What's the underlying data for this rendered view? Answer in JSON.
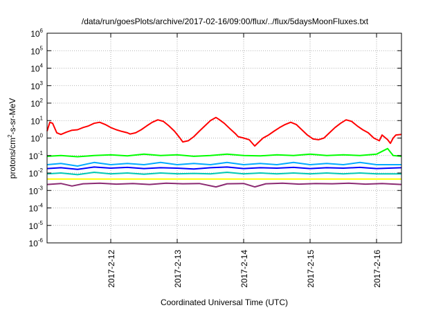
{
  "chart_data": {
    "type": "line",
    "title": "/data/run/goesPlots/archive/2017-02-16/09:00/flux/../flux/5daysMoonFluxes.txt",
    "xlabel": "Coordinated Universal Time (UTC)",
    "ylabel": "protons/cm2-s-sr-MeV",
    "ylabel_parts": {
      "pre": "protons/cm",
      "sup": "2",
      "post": "-s-sr-MeV"
    },
    "y_scale": "log",
    "ylim": [
      1e-06,
      1000000.0
    ],
    "xlim": [
      "2017-02-11 01:00",
      "2017-02-16 09:00"
    ],
    "grid": true,
    "x_ticks": [
      {
        "date": "2017-02-12 00:00",
        "label": "2017-2-12"
      },
      {
        "date": "2017-02-13 00:00",
        "label": "2017-2-13"
      },
      {
        "date": "2017-02-14 00:00",
        "label": "2017-2-14"
      },
      {
        "date": "2017-02-15 00:00",
        "label": "2017-2-15"
      },
      {
        "date": "2017-02-16 00:00",
        "label": "2017-2-16"
      }
    ],
    "y_ticks": [
      {
        "value": 1e-06,
        "base": "10",
        "exp": "-6"
      },
      {
        "value": 1e-05,
        "base": "10",
        "exp": "-5"
      },
      {
        "value": 0.0001,
        "base": "10",
        "exp": "-4"
      },
      {
        "value": 0.001,
        "base": "10",
        "exp": "-3"
      },
      {
        "value": 0.01,
        "base": "10",
        "exp": "-2"
      },
      {
        "value": 0.1,
        "base": "10",
        "exp": "-1"
      },
      {
        "value": 1,
        "base": "10",
        "exp": "0"
      },
      {
        "value": 10,
        "base": "10",
        "exp": "1"
      },
      {
        "value": 100,
        "base": "10",
        "exp": "2"
      },
      {
        "value": 1000,
        "base": "10",
        "exp": "3"
      },
      {
        "value": 10000,
        "base": "10",
        "exp": "4"
      },
      {
        "value": 100000,
        "base": "10",
        "exp": "5"
      },
      {
        "value": 1000000,
        "base": "10",
        "exp": "6"
      }
    ],
    "series": [
      {
        "color": "#ff0000",
        "points": [
          [
            "2017-02-11 01:00",
            2.5
          ],
          [
            "2017-02-11 02:00",
            8.0
          ],
          [
            "2017-02-11 03:00",
            7.0
          ],
          [
            "2017-02-11 04:30",
            2.0
          ],
          [
            "2017-02-11 06:00",
            1.6
          ],
          [
            "2017-02-11 08:00",
            2.2
          ],
          [
            "2017-02-11 10:00",
            2.8
          ],
          [
            "2017-02-11 12:00",
            3.0
          ],
          [
            "2017-02-11 14:00",
            4.0
          ],
          [
            "2017-02-11 16:00",
            5.0
          ],
          [
            "2017-02-11 18:00",
            7.0
          ],
          [
            "2017-02-11 20:00",
            8.0
          ],
          [
            "2017-02-11 22:00",
            6.0
          ],
          [
            "2017-02-12 00:00",
            4.0
          ],
          [
            "2017-02-12 02:00",
            3.0
          ],
          [
            "2017-02-12 04:00",
            2.4
          ],
          [
            "2017-02-12 06:00",
            2.0
          ],
          [
            "2017-02-12 07:00",
            1.7
          ],
          [
            "2017-02-12 09:00",
            2.0
          ],
          [
            "2017-02-12 11:00",
            3.0
          ],
          [
            "2017-02-12 13:00",
            5.0
          ],
          [
            "2017-02-12 15:00",
            8.0
          ],
          [
            "2017-02-12 17:00",
            11.0
          ],
          [
            "2017-02-12 19:00",
            9.0
          ],
          [
            "2017-02-12 21:00",
            5.0
          ],
          [
            "2017-02-12 23:00",
            2.5
          ],
          [
            "2017-02-13 01:00",
            1.0
          ],
          [
            "2017-02-13 02:00",
            0.6
          ],
          [
            "2017-02-13 04:00",
            0.7
          ],
          [
            "2017-02-13 06:00",
            1.2
          ],
          [
            "2017-02-13 08:00",
            2.5
          ],
          [
            "2017-02-13 10:00",
            5.0
          ],
          [
            "2017-02-13 12:00",
            10.0
          ],
          [
            "2017-02-13 14:00",
            15.0
          ],
          [
            "2017-02-13 15:00",
            12.0
          ],
          [
            "2017-02-13 17:00",
            7.0
          ],
          [
            "2017-02-13 19:00",
            3.5
          ],
          [
            "2017-02-13 21:00",
            1.8
          ],
          [
            "2017-02-13 22:00",
            1.2
          ],
          [
            "2017-02-14 00:00",
            1.0
          ],
          [
            "2017-02-14 02:00",
            0.8
          ],
          [
            "2017-02-14 04:00",
            0.35
          ],
          [
            "2017-02-14 05:00",
            0.5
          ],
          [
            "2017-02-14 07:00",
            1.0
          ],
          [
            "2017-02-14 09:00",
            1.5
          ],
          [
            "2017-02-14 11:00",
            2.5
          ],
          [
            "2017-02-14 13:00",
            4.0
          ],
          [
            "2017-02-14 15:00",
            6.0
          ],
          [
            "2017-02-14 17:00",
            8.0
          ],
          [
            "2017-02-14 19:00",
            6.0
          ],
          [
            "2017-02-14 21:00",
            3.0
          ],
          [
            "2017-02-14 23:00",
            1.5
          ],
          [
            "2017-02-15 01:00",
            0.9
          ],
          [
            "2017-02-15 03:00",
            0.8
          ],
          [
            "2017-02-15 05:00",
            1.0
          ],
          [
            "2017-02-15 07:00",
            2.0
          ],
          [
            "2017-02-15 09:00",
            4.0
          ],
          [
            "2017-02-15 11:00",
            7.0
          ],
          [
            "2017-02-15 13:00",
            11.0
          ],
          [
            "2017-02-15 15:00",
            9.0
          ],
          [
            "2017-02-15 17:00",
            5.0
          ],
          [
            "2017-02-15 19:00",
            3.0
          ],
          [
            "2017-02-15 21:00",
            2.0
          ],
          [
            "2017-02-15 23:00",
            1.0
          ],
          [
            "2017-02-16 01:00",
            0.7
          ],
          [
            "2017-02-16 02:00",
            1.5
          ],
          [
            "2017-02-16 04:00",
            0.8
          ],
          [
            "2017-02-16 05:00",
            0.5
          ],
          [
            "2017-02-16 06:00",
            1.0
          ],
          [
            "2017-02-16 07:00",
            1.5
          ],
          [
            "2017-02-16 09:00",
            1.6
          ]
        ]
      },
      {
        "color": "#00ff00",
        "points": [
          [
            "2017-02-11 01:00",
            0.09
          ],
          [
            "2017-02-11 06:00",
            0.1
          ],
          [
            "2017-02-11 12:00",
            0.085
          ],
          [
            "2017-02-11 18:00",
            0.1
          ],
          [
            "2017-02-12 00:00",
            0.11
          ],
          [
            "2017-02-12 06:00",
            0.095
          ],
          [
            "2017-02-12 12:00",
            0.12
          ],
          [
            "2017-02-12 18:00",
            0.1
          ],
          [
            "2017-02-13 00:00",
            0.11
          ],
          [
            "2017-02-13 06:00",
            0.09
          ],
          [
            "2017-02-13 12:00",
            0.1
          ],
          [
            "2017-02-13 18:00",
            0.12
          ],
          [
            "2017-02-14 00:00",
            0.1
          ],
          [
            "2017-02-14 06:00",
            0.095
          ],
          [
            "2017-02-14 12:00",
            0.11
          ],
          [
            "2017-02-14 18:00",
            0.1
          ],
          [
            "2017-02-15 00:00",
            0.12
          ],
          [
            "2017-02-15 06:00",
            0.1
          ],
          [
            "2017-02-15 12:00",
            0.11
          ],
          [
            "2017-02-15 18:00",
            0.1
          ],
          [
            "2017-02-16 00:00",
            0.12
          ],
          [
            "2017-02-16 04:00",
            0.25
          ],
          [
            "2017-02-16 06:00",
            0.1
          ],
          [
            "2017-02-16 09:00",
            0.09
          ]
        ]
      },
      {
        "color": "#00aaff",
        "points": [
          [
            "2017-02-11 01:00",
            0.03
          ],
          [
            "2017-02-11 06:00",
            0.035
          ],
          [
            "2017-02-11 12:00",
            0.025
          ],
          [
            "2017-02-11 18:00",
            0.04
          ],
          [
            "2017-02-12 00:00",
            0.03
          ],
          [
            "2017-02-12 06:00",
            0.035
          ],
          [
            "2017-02-12 12:00",
            0.03
          ],
          [
            "2017-02-12 18:00",
            0.04
          ],
          [
            "2017-02-13 00:00",
            0.03
          ],
          [
            "2017-02-13 06:00",
            0.035
          ],
          [
            "2017-02-13 12:00",
            0.03
          ],
          [
            "2017-02-13 18:00",
            0.04
          ],
          [
            "2017-02-14 00:00",
            0.03
          ],
          [
            "2017-02-14 06:00",
            0.035
          ],
          [
            "2017-02-14 12:00",
            0.03
          ],
          [
            "2017-02-14 18:00",
            0.04
          ],
          [
            "2017-02-15 00:00",
            0.03
          ],
          [
            "2017-02-15 06:00",
            0.035
          ],
          [
            "2017-02-15 12:00",
            0.03
          ],
          [
            "2017-02-15 18:00",
            0.04
          ],
          [
            "2017-02-16 00:00",
            0.03
          ],
          [
            "2017-02-16 09:00",
            0.03
          ]
        ]
      },
      {
        "color": "#0000ff",
        "points": [
          [
            "2017-02-11 01:00",
            0.018
          ],
          [
            "2017-02-11 06:00",
            0.02
          ],
          [
            "2017-02-11 12:00",
            0.016
          ],
          [
            "2017-02-11 18:00",
            0.022
          ],
          [
            "2017-02-12 00:00",
            0.019
          ],
          [
            "2017-02-12 06:00",
            0.021
          ],
          [
            "2017-02-12 12:00",
            0.018
          ],
          [
            "2017-02-12 18:00",
            0.02
          ],
          [
            "2017-02-13 00:00",
            0.019
          ],
          [
            "2017-02-13 06:00",
            0.017
          ],
          [
            "2017-02-13 12:00",
            0.02
          ],
          [
            "2017-02-13 18:00",
            0.022
          ],
          [
            "2017-02-14 00:00",
            0.018
          ],
          [
            "2017-02-14 06:00",
            0.02
          ],
          [
            "2017-02-14 12:00",
            0.019
          ],
          [
            "2017-02-14 18:00",
            0.021
          ],
          [
            "2017-02-15 00:00",
            0.018
          ],
          [
            "2017-02-15 06:00",
            0.02
          ],
          [
            "2017-02-15 12:00",
            0.019
          ],
          [
            "2017-02-15 18:00",
            0.021
          ],
          [
            "2017-02-16 00:00",
            0.018
          ],
          [
            "2017-02-16 09:00",
            0.02
          ]
        ]
      },
      {
        "color": "#00c8b4",
        "points": [
          [
            "2017-02-11 01:00",
            0.009
          ],
          [
            "2017-02-11 06:00",
            0.01
          ],
          [
            "2017-02-11 12:00",
            0.008
          ],
          [
            "2017-02-11 18:00",
            0.011
          ],
          [
            "2017-02-12 00:00",
            0.009
          ],
          [
            "2017-02-12 06:00",
            0.01
          ],
          [
            "2017-02-12 12:00",
            0.0085
          ],
          [
            "2017-02-12 18:00",
            0.01
          ],
          [
            "2017-02-13 00:00",
            0.009
          ],
          [
            "2017-02-13 06:00",
            0.0095
          ],
          [
            "2017-02-13 12:00",
            0.009
          ],
          [
            "2017-02-13 18:00",
            0.011
          ],
          [
            "2017-02-14 00:00",
            0.009
          ],
          [
            "2017-02-14 06:00",
            0.01
          ],
          [
            "2017-02-14 12:00",
            0.009
          ],
          [
            "2017-02-14 18:00",
            0.01
          ],
          [
            "2017-02-15 00:00",
            0.009
          ],
          [
            "2017-02-15 06:00",
            0.01
          ],
          [
            "2017-02-15 12:00",
            0.009
          ],
          [
            "2017-02-15 18:00",
            0.01
          ],
          [
            "2017-02-16 00:00",
            0.009
          ],
          [
            "2017-02-16 09:00",
            0.009
          ]
        ]
      },
      {
        "color": "#ffff00",
        "points": [
          [
            "2017-02-11 01:00",
            0.0045
          ],
          [
            "2017-02-12 00:00",
            0.0045
          ],
          [
            "2017-02-13 00:00",
            0.0045
          ],
          [
            "2017-02-14 00:00",
            0.0045
          ],
          [
            "2017-02-15 00:00",
            0.0045
          ],
          [
            "2017-02-16 00:00",
            0.0045
          ],
          [
            "2017-02-16 09:00",
            0.0045
          ]
        ]
      },
      {
        "color": "#8b2a72",
        "points": [
          [
            "2017-02-11 01:00",
            0.0022
          ],
          [
            "2017-02-11 06:00",
            0.0025
          ],
          [
            "2017-02-11 10:00",
            0.0018
          ],
          [
            "2017-02-11 14:00",
            0.0024
          ],
          [
            "2017-02-11 20:00",
            0.0026
          ],
          [
            "2017-02-12 02:00",
            0.0023
          ],
          [
            "2017-02-12 08:00",
            0.0025
          ],
          [
            "2017-02-12 14:00",
            0.0022
          ],
          [
            "2017-02-12 20:00",
            0.0026
          ],
          [
            "2017-02-13 02:00",
            0.0024
          ],
          [
            "2017-02-13 08:00",
            0.0025
          ],
          [
            "2017-02-13 14:00",
            0.0016
          ],
          [
            "2017-02-13 18:00",
            0.0024
          ],
          [
            "2017-02-14 00:00",
            0.0025
          ],
          [
            "2017-02-14 04:00",
            0.0016
          ],
          [
            "2017-02-14 08:00",
            0.0024
          ],
          [
            "2017-02-14 14:00",
            0.0026
          ],
          [
            "2017-02-14 20:00",
            0.0023
          ],
          [
            "2017-02-15 02:00",
            0.0025
          ],
          [
            "2017-02-15 08:00",
            0.0024
          ],
          [
            "2017-02-15 14:00",
            0.0026
          ],
          [
            "2017-02-15 20:00",
            0.0023
          ],
          [
            "2017-02-16 02:00",
            0.0025
          ],
          [
            "2017-02-16 09:00",
            0.0022
          ]
        ]
      }
    ]
  }
}
